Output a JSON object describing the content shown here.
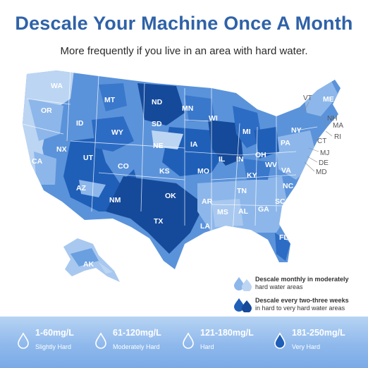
{
  "header": {
    "title": "Descale Your Machine Once A Month",
    "subtitle": "More frequently if you live in an area with hard water."
  },
  "map": {
    "states_on_map": [
      "WA",
      "OR",
      "CA",
      "NX",
      "ID",
      "MT",
      "WY",
      "UT",
      "AZ",
      "CO",
      "NM",
      "ND",
      "SD",
      "NE",
      "KS",
      "OK",
      "TX",
      "MN",
      "IA",
      "MO",
      "AR",
      "LA",
      "WI",
      "IL",
      "MI",
      "IN",
      "OH",
      "KY",
      "TN",
      "MS",
      "AL",
      "GA",
      "FL",
      "SC",
      "NC",
      "VA",
      "WV",
      "PA",
      "NY",
      "AK"
    ],
    "northeast_callouts": [
      "VT",
      "ME",
      "NH",
      "MA",
      "RI",
      "CT",
      "MJ",
      "DE",
      "MD"
    ],
    "colors": {
      "very_light": "#bcd5f2",
      "light": "#8db7ea",
      "medium": "#4f8bd7",
      "dark": "#1f5fb8",
      "darkest": "#154a9a"
    }
  },
  "legend": {
    "moderate": {
      "bold": "Descale monthly in moderately",
      "rest": "hard water areas"
    },
    "hard": {
      "bold": "Descale every two-three weeks",
      "rest": "in hard to very hard water areas"
    }
  },
  "hardness_scale": [
    {
      "range": "1-60mg/L",
      "label": "Slightly Hard",
      "icon": "drop-outline-icon"
    },
    {
      "range": "61-120mg/L",
      "label": "Moderately Hard",
      "icon": "drop-outline-icon"
    },
    {
      "range": "121-180mg/L",
      "label": "Hard",
      "icon": "drop-outline-icon"
    },
    {
      "range": "181-250mg/L",
      "label": "Very Hard",
      "icon": "drop-filled-icon"
    }
  ]
}
